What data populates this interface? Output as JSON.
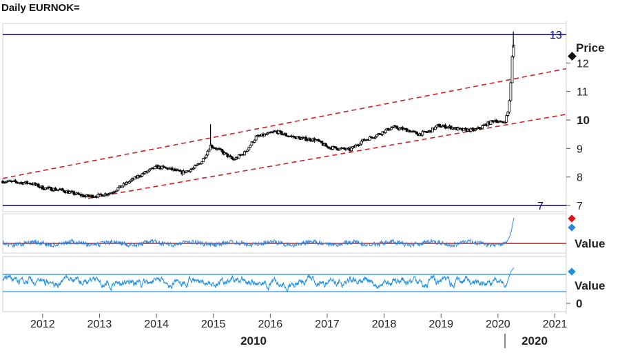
{
  "title": "Daily EURNOK=",
  "colors": {
    "candle": "#000000",
    "level_line": "#00008b",
    "channel": "#cc2222",
    "indicator1": "#2e86de",
    "indicator1_ref": "#b22222",
    "indicator2": "#1e90e0",
    "grid": "#dddddd"
  },
  "chart_data": [
    {
      "type": "candlestick",
      "panel": "price",
      "y_axis_label": "Price",
      "ylim": [
        6.8,
        13.5
      ],
      "y_ticks": [
        "7",
        "8",
        "9",
        "10",
        "11",
        "12"
      ],
      "y_bold_tick": "10",
      "x_ticks": [
        "2012",
        "2013",
        "2014",
        "2015",
        "2016",
        "2017",
        "2018",
        "2019",
        "2020",
        "2021"
      ],
      "x_group_labels": [
        "2010",
        "2020"
      ],
      "xlim": [
        2011.3,
        2021.2
      ],
      "horizontal_levels": [
        {
          "label": "13",
          "value": 13
        },
        {
          "label": "7",
          "value": 7
        }
      ],
      "channel": {
        "style": "dashed",
        "upper": [
          [
            2011.3,
            7.95
          ],
          [
            2021.2,
            11.8
          ]
        ],
        "lower": [
          [
            2012.8,
            7.25
          ],
          [
            2021.2,
            10.2
          ]
        ]
      },
      "series": [
        {
          "points": [
            [
              2011.3,
              7.85
            ],
            [
              2011.5,
              7.82
            ],
            [
              2011.8,
              7.78
            ],
            [
              2012.0,
              7.62
            ],
            [
              2012.3,
              7.55
            ],
            [
              2012.55,
              7.42
            ],
            [
              2012.75,
              7.32
            ],
            [
              2013.0,
              7.35
            ],
            [
              2013.2,
              7.45
            ],
            [
              2013.45,
              7.75
            ],
            [
              2013.7,
              8.05
            ],
            [
              2014.0,
              8.35
            ],
            [
              2014.2,
              8.3
            ],
            [
              2014.45,
              8.15
            ],
            [
              2014.65,
              8.3
            ],
            [
              2014.8,
              8.55
            ],
            [
              2014.95,
              9.1
            ],
            [
              2015.1,
              8.95
            ],
            [
              2015.35,
              8.6
            ],
            [
              2015.55,
              8.85
            ],
            [
              2015.75,
              9.4
            ],
            [
              2015.95,
              9.5
            ],
            [
              2016.1,
              9.6
            ],
            [
              2016.3,
              9.45
            ],
            [
              2016.55,
              9.35
            ],
            [
              2016.8,
              9.3
            ],
            [
              2017.0,
              9.05
            ],
            [
              2017.2,
              9.0
            ],
            [
              2017.4,
              8.95
            ],
            [
              2017.6,
              9.25
            ],
            [
              2017.85,
              9.45
            ],
            [
              2018.0,
              9.6
            ],
            [
              2018.15,
              9.75
            ],
            [
              2018.4,
              9.65
            ],
            [
              2018.6,
              9.5
            ],
            [
              2018.8,
              9.6
            ],
            [
              2018.95,
              9.8
            ],
            [
              2019.15,
              9.75
            ],
            [
              2019.35,
              9.65
            ],
            [
              2019.6,
              9.65
            ],
            [
              2019.8,
              9.85
            ],
            [
              2019.95,
              10.0
            ],
            [
              2020.05,
              9.9
            ],
            [
              2020.12,
              9.95
            ],
            [
              2020.18,
              10.3
            ],
            [
              2020.22,
              11.1
            ],
            [
              2020.25,
              12.2
            ],
            [
              2020.28,
              12.7
            ]
          ],
          "spikes": [
            {
              "x": 2014.95,
              "high": 9.85
            },
            {
              "x": 2020.27,
              "high": 13.1
            }
          ]
        }
      ]
    },
    {
      "type": "line",
      "panel": "indicator1",
      "y_axis_label": "Value",
      "series": [
        {
          "points": [
            [
              2011.3,
              0.0
            ],
            [
              2020.15,
              0.0
            ],
            [
              2020.22,
              0.5
            ],
            [
              2020.28,
              1.0
            ]
          ]
        }
      ],
      "reference_lines": [
        0
      ]
    },
    {
      "type": "line",
      "panel": "indicator2",
      "y_axis_label": "Value",
      "y_ticks": [
        "0"
      ],
      "series": [
        {
          "points": [
            [
              2011.3,
              0.5
            ],
            [
              2020.15,
              0.5
            ],
            [
              2020.28,
              0.85
            ]
          ]
        }
      ],
      "reference_lines": [
        0.25,
        0.75
      ]
    }
  ]
}
